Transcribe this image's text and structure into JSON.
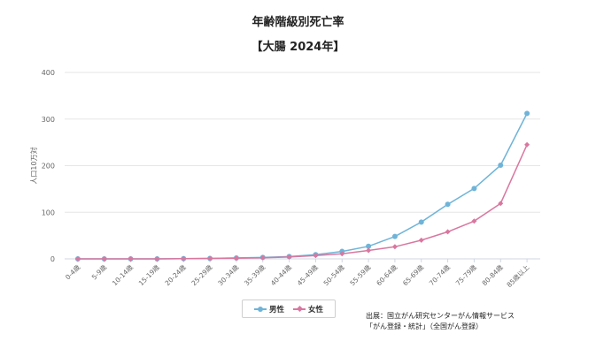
{
  "chart_data": {
    "type": "line",
    "title": "年齢階級別死亡率",
    "subtitle": "【大腸 2024年】",
    "ylabel": "人口10万対",
    "xlabel": "",
    "ylim": [
      0,
      400
    ],
    "yticks": [
      0,
      100,
      200,
      300,
      400
    ],
    "grid": true,
    "legend_position": "bottom",
    "categories": [
      "0-4歳",
      "5-9歳",
      "10-14歳",
      "15-19歳",
      "20-24歳",
      "25-29歳",
      "30-34歳",
      "35-39歳",
      "40-44歳",
      "45-49歳",
      "50-54歳",
      "55-59歳",
      "60-64歳",
      "65-69歳",
      "70-74歳",
      "75-79歳",
      "80-84歳",
      "85歳以上"
    ],
    "series": [
      {
        "name": "男性",
        "color": "#6fb4d8",
        "marker": "circle",
        "values": [
          0,
          0,
          0,
          0,
          0.5,
          1,
          2,
          3,
          5,
          9,
          16,
          27,
          48,
          79,
          117,
          151,
          201,
          312
        ]
      },
      {
        "name": "女性",
        "color": "#d9779f",
        "marker": "diamond",
        "values": [
          0,
          0,
          0,
          0,
          0.5,
          1,
          1.5,
          2.5,
          4,
          7,
          11,
          18,
          26,
          40,
          58,
          81,
          119,
          245
        ]
      }
    ]
  },
  "source": {
    "line1": "出展：国立がん研究センターがん情報サービス",
    "line2": "「がん登録・統計」（全国がん登録）"
  }
}
